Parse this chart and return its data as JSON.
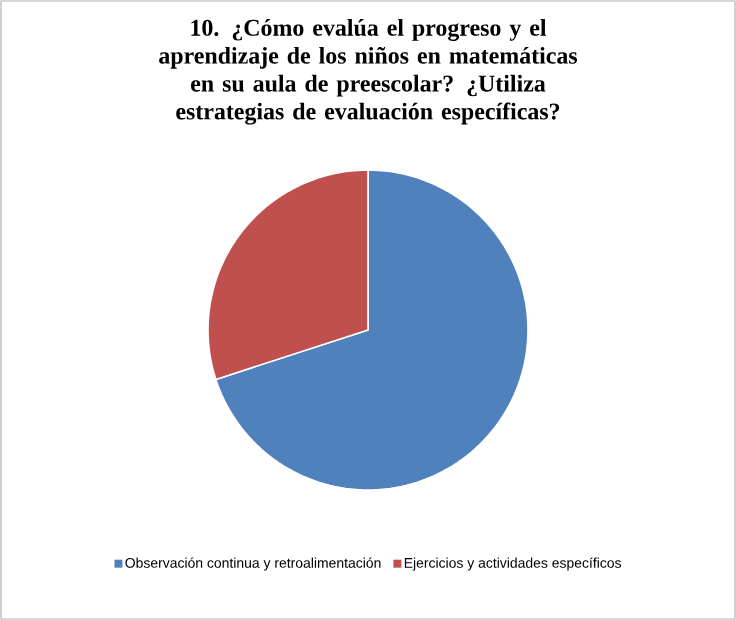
{
  "chart_data": {
    "type": "pie",
    "title": "10. ¿Cómo evalúa el progreso y el aprendizaje de los niños en matemáticas en su aula de preescolar? ¿Utiliza estrategias de evaluación específicas?",
    "categories": [
      "Observación continua y retroalimentación",
      "Ejercicios y actividades específicos"
    ],
    "values": [
      70,
      30
    ],
    "colors": [
      "#4f81bd",
      "#c0504d"
    ],
    "legend": "bottom"
  }
}
